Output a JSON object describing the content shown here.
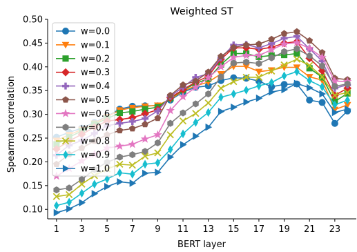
{
  "chart_data": {
    "type": "line",
    "title": "Weighted ST",
    "xlabel": "BERT layer",
    "ylabel": "Spearman correlation",
    "x": [
      1,
      2,
      3,
      4,
      5,
      6,
      7,
      8,
      9,
      10,
      11,
      12,
      13,
      14,
      15,
      16,
      17,
      18,
      19,
      20,
      21,
      22,
      23,
      24
    ],
    "xticks": [
      "1",
      "3",
      "5",
      "7",
      "9",
      "11",
      "13",
      "15",
      "17",
      "19",
      "21",
      "23"
    ],
    "xlim": [
      0.3,
      24.7
    ],
    "ylim": [
      0.08,
      0.5
    ],
    "yticks": [
      "0.10",
      "0.15",
      "0.20",
      "0.25",
      "0.30",
      "0.35",
      "0.40",
      "0.45",
      "0.50"
    ],
    "grid": false,
    "legend_position": "top-left",
    "series": [
      {
        "name": "w=0.0",
        "color": "#1f77b4",
        "marker": "circle",
        "values": [
          0.252,
          0.262,
          0.271,
          0.283,
          0.296,
          0.311,
          0.317,
          0.318,
          0.318,
          0.33,
          0.347,
          0.357,
          0.36,
          0.371,
          0.377,
          0.376,
          0.37,
          0.358,
          0.363,
          0.364,
          0.33,
          0.325,
          0.281,
          0.307
        ]
      },
      {
        "name": "w=0.1",
        "color": "#ff7f0e",
        "marker": "triangle-down",
        "values": [
          0.245,
          0.257,
          0.268,
          0.281,
          0.295,
          0.309,
          0.314,
          0.317,
          0.319,
          0.332,
          0.349,
          0.36,
          0.368,
          0.385,
          0.401,
          0.401,
          0.39,
          0.393,
          0.399,
          0.399,
          0.379,
          0.372,
          0.31,
          0.32
        ]
      },
      {
        "name": "w=0.2",
        "color": "#2ca02c",
        "marker": "square",
        "values": [
          0.237,
          0.252,
          0.265,
          0.279,
          0.291,
          0.303,
          0.306,
          0.311,
          0.315,
          0.334,
          0.351,
          0.365,
          0.375,
          0.405,
          0.428,
          0.428,
          0.421,
          0.424,
          0.425,
          0.428,
          0.397,
          0.378,
          0.327,
          0.344
        ]
      },
      {
        "name": "w=0.3",
        "color": "#d62728",
        "marker": "diamond",
        "values": [
          0.227,
          0.244,
          0.258,
          0.273,
          0.286,
          0.289,
          0.293,
          0.301,
          0.31,
          0.335,
          0.352,
          0.368,
          0.38,
          0.416,
          0.44,
          0.44,
          0.437,
          0.441,
          0.45,
          0.453,
          0.418,
          0.392,
          0.34,
          0.355
        ]
      },
      {
        "name": "w=0.4",
        "color": "#9467bd",
        "marker": "plus",
        "values": [
          0.214,
          0.235,
          0.245,
          0.26,
          0.276,
          0.281,
          0.285,
          0.291,
          0.307,
          0.338,
          0.357,
          0.378,
          0.385,
          0.419,
          0.446,
          0.447,
          0.44,
          0.449,
          0.46,
          0.464,
          0.438,
          0.412,
          0.355,
          0.362
        ]
      },
      {
        "name": "w=0.5",
        "color": "#8c564b",
        "marker": "pentagon",
        "values": [
          0.195,
          0.216,
          0.229,
          0.244,
          0.257,
          0.266,
          0.27,
          0.279,
          0.292,
          0.34,
          0.362,
          0.37,
          0.389,
          0.422,
          0.441,
          0.446,
          0.448,
          0.458,
          0.47,
          0.474,
          0.455,
          0.43,
          0.376,
          0.373
        ]
      },
      {
        "name": "w=0.6",
        "color": "#e377c2",
        "marker": "star",
        "values": [
          0.17,
          0.186,
          0.202,
          0.216,
          0.229,
          0.233,
          0.237,
          0.248,
          0.257,
          0.308,
          0.337,
          0.357,
          0.377,
          0.4,
          0.42,
          0.424,
          0.424,
          0.436,
          0.448,
          0.451,
          0.439,
          0.42,
          0.37,
          0.369
        ]
      },
      {
        "name": "w=0.7",
        "color": "#7f7f7f",
        "marker": "hexagon",
        "values": [
          0.141,
          0.145,
          0.163,
          0.184,
          0.199,
          0.21,
          0.215,
          0.222,
          0.24,
          0.281,
          0.303,
          0.322,
          0.343,
          0.379,
          0.408,
          0.41,
          0.407,
          0.419,
          0.432,
          0.438,
          0.423,
          0.402,
          0.359,
          0.364
        ]
      },
      {
        "name": "w=0.8",
        "color": "#bcbd22",
        "marker": "x",
        "values": [
          0.127,
          0.131,
          0.153,
          0.171,
          0.185,
          0.195,
          0.193,
          0.212,
          0.219,
          0.257,
          0.286,
          0.302,
          0.324,
          0.355,
          0.369,
          0.378,
          0.378,
          0.391,
          0.404,
          0.416,
          0.403,
          0.379,
          0.34,
          0.346
        ]
      },
      {
        "name": "w=0.9",
        "color": "#17becf",
        "marker": "thin-diamond",
        "values": [
          0.108,
          0.115,
          0.134,
          0.153,
          0.164,
          0.177,
          0.174,
          0.195,
          0.198,
          0.226,
          0.259,
          0.283,
          0.304,
          0.336,
          0.343,
          0.351,
          0.36,
          0.367,
          0.381,
          0.39,
          0.371,
          0.358,
          0.32,
          0.33
        ]
      },
      {
        "name": "w=1.0",
        "color": "#1f77b4",
        "marker": "triangle-right",
        "values": [
          0.093,
          0.101,
          0.114,
          0.133,
          0.148,
          0.158,
          0.155,
          0.176,
          0.178,
          0.21,
          0.236,
          0.254,
          0.273,
          0.306,
          0.315,
          0.326,
          0.334,
          0.347,
          0.352,
          0.365,
          0.356,
          0.343,
          0.304,
          0.311
        ]
      }
    ]
  }
}
